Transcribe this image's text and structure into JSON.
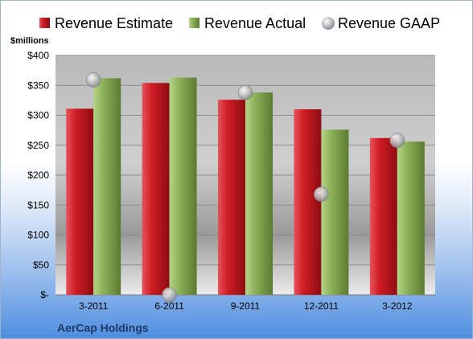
{
  "chart_data": {
    "type": "bar",
    "title": "",
    "ylabel": "$millions",
    "xlabel": "",
    "company": "AerCap Holdings",
    "categories": [
      "3-2011",
      "6-2011",
      "9-2011",
      "12-2011",
      "3-2012"
    ],
    "ylim": [
      0,
      400
    ],
    "yticks": [
      0,
      50,
      100,
      150,
      200,
      250,
      300,
      350,
      400
    ],
    "ytick_labels": [
      "$-",
      "$50",
      "$100",
      "$150",
      "$200",
      "$250",
      "$300",
      "$350",
      "$400"
    ],
    "grid": true,
    "legend_position": "top",
    "series": [
      {
        "name": "Revenue Estimate",
        "kind": "bar",
        "color": "#d01c24",
        "values": [
          311,
          354,
          326,
          310,
          262
        ]
      },
      {
        "name": "Revenue Actual",
        "kind": "bar",
        "color": "#8db25a",
        "values": [
          362,
          363,
          338,
          276,
          256
        ]
      },
      {
        "name": "Revenue GAAP",
        "kind": "marker",
        "color": "#b8b8bc",
        "values": [
          359,
          0,
          338,
          168,
          258
        ]
      }
    ]
  }
}
